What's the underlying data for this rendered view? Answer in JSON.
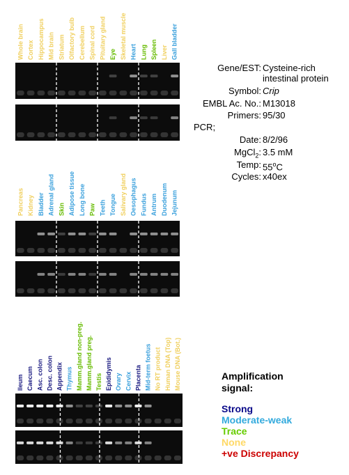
{
  "panels": [
    {
      "lanes": [
        {
          "label": "Whole brain",
          "color": "#f0d060"
        },
        {
          "label": "Cortex",
          "color": "#f0d060"
        },
        {
          "label": "Hippocampus",
          "color": "#f0d060"
        },
        {
          "label": "Mid brain",
          "color": "#f0d060"
        },
        {
          "label": "Striatum",
          "color": "#f0d060"
        },
        {
          "label": "Olfactory bulb",
          "color": "#f0d060"
        },
        {
          "label": "Cerebellum",
          "color": "#f0d060"
        },
        {
          "label": "Spinal cord",
          "color": "#f0d060"
        },
        {
          "label": "Pituitary gland",
          "color": "#f0d060"
        },
        {
          "label": "Eye",
          "color": "#66bb00"
        },
        {
          "label": "Skeletal muscle",
          "color": "#f0d060"
        },
        {
          "label": "Heart",
          "color": "#3aa0dc"
        },
        {
          "label": "Lung",
          "color": "#66bb00"
        },
        {
          "label": "Spleen",
          "color": "#66bb00"
        },
        {
          "label": "Liver",
          "color": "#f0d060"
        },
        {
          "label": "Gall bladder",
          "color": "#3aa0dc"
        }
      ]
    },
    {
      "lanes": [
        {
          "label": "Pancreas",
          "color": "#f0d060"
        },
        {
          "label": "Kidney",
          "color": "#f0d060"
        },
        {
          "label": "Bladder",
          "color": "#3aa0dc"
        },
        {
          "label": "Adrenal gland",
          "color": "#3aa0dc"
        },
        {
          "label": "Skin",
          "color": "#66bb00"
        },
        {
          "label": "Adipose tissue",
          "color": "#3aa0dc"
        },
        {
          "label": "Long bone",
          "color": "#3aa0dc"
        },
        {
          "label": "Paw",
          "color": "#66bb00"
        },
        {
          "label": "Teeth",
          "color": "#3aa0dc"
        },
        {
          "label": "Tongue",
          "color": "#3aa0dc"
        },
        {
          "label": "Salivary gland",
          "color": "#f0d060"
        },
        {
          "label": "Oesophagus",
          "color": "#3aa0dc"
        },
        {
          "label": "Fundus",
          "color": "#3aa0dc"
        },
        {
          "label": "Antrum",
          "color": "#3aa0dc"
        },
        {
          "label": "Duodenum",
          "color": "#3aa0dc"
        },
        {
          "label": "Jejunum",
          "color": "#3aa0dc"
        }
      ]
    },
    {
      "lanes": [
        {
          "label": "Ileum",
          "color": "#1a1a80"
        },
        {
          "label": "Caecum",
          "color": "#1a1a80"
        },
        {
          "label": "Asc. colon",
          "color": "#1a1a80"
        },
        {
          "label": "Desc. colon",
          "color": "#1a1a80"
        },
        {
          "label": "Appendix",
          "color": "#1a1a80"
        },
        {
          "label": "Thymus",
          "color": "#3aa0dc"
        },
        {
          "label": "Mamm.gland non-preg.",
          "color": "#66bb00"
        },
        {
          "label": "Mamm.gland preg.",
          "color": "#66bb00"
        },
        {
          "label": "Testis",
          "color": "#66bb00"
        },
        {
          "label": "Epididymis",
          "color": "#1a1a80"
        },
        {
          "label": "Ovary",
          "color": "#3aa0dc"
        },
        {
          "label": "Cervix",
          "color": "#3aa0dc"
        },
        {
          "label": "Placenta",
          "color": "#1a1a80"
        },
        {
          "label": "Mid-term foetus",
          "color": "#3aa0dc"
        },
        {
          "label": "No RT product",
          "color": "#f0d060"
        },
        {
          "label": "Human DNA (Top)",
          "color": "#f0d060"
        },
        {
          "label": "Mouse DNA (Bot.)",
          "color": "#f0d060"
        }
      ]
    }
  ],
  "info": [
    {
      "label": [
        {
          "text": "Gene/EST:"
        }
      ],
      "value": [
        {
          "text": "Cysteine-rich"
        },
        {
          "text": "intestinal protein",
          "newline": true
        }
      ]
    },
    {
      "label": [
        {
          "text": "Symbol:"
        }
      ],
      "value": [
        {
          "text": "Crip",
          "italic": true
        }
      ]
    },
    {
      "label": [
        {
          "text": "EMBL Ac. No.:"
        }
      ],
      "value": [
        {
          "text": "M13018"
        }
      ]
    },
    {
      "label": [
        {
          "text": "Primers:"
        }
      ],
      "value": [
        {
          "text": "95/30"
        }
      ]
    },
    {
      "heading": "PCR;"
    },
    {
      "label": [
        {
          "text": "Date:"
        }
      ],
      "value": [
        {
          "text": "8/2/96"
        }
      ]
    },
    {
      "label": [
        {
          "text": "MgCl"
        },
        {
          "text": "2",
          "sub": true
        },
        {
          "text": ":"
        }
      ],
      "value": [
        {
          "text": "3.5 mM"
        }
      ]
    },
    {
      "label": [
        {
          "text": "Temp:"
        }
      ],
      "value": [
        {
          "text": "55"
        },
        {
          "text": "o",
          "sup": true
        },
        {
          "text": "C"
        }
      ]
    },
    {
      "label": [
        {
          "text": "Cycles:"
        }
      ],
      "value": [
        {
          "text": "x40ex"
        }
      ]
    }
  ],
  "legend": {
    "title": "Amplification signal:",
    "items": [
      {
        "label": "Strong",
        "color": "#0a0a8a"
      },
      {
        "label": "Moderate-weak",
        "color": "#33aadd"
      },
      {
        "label": "Trace",
        "color": "#66cc00"
      },
      {
        "label": "None",
        "color": "#ffd966"
      },
      {
        "label": "+ve Discrepancy",
        "color": "#cc0000"
      }
    ]
  }
}
